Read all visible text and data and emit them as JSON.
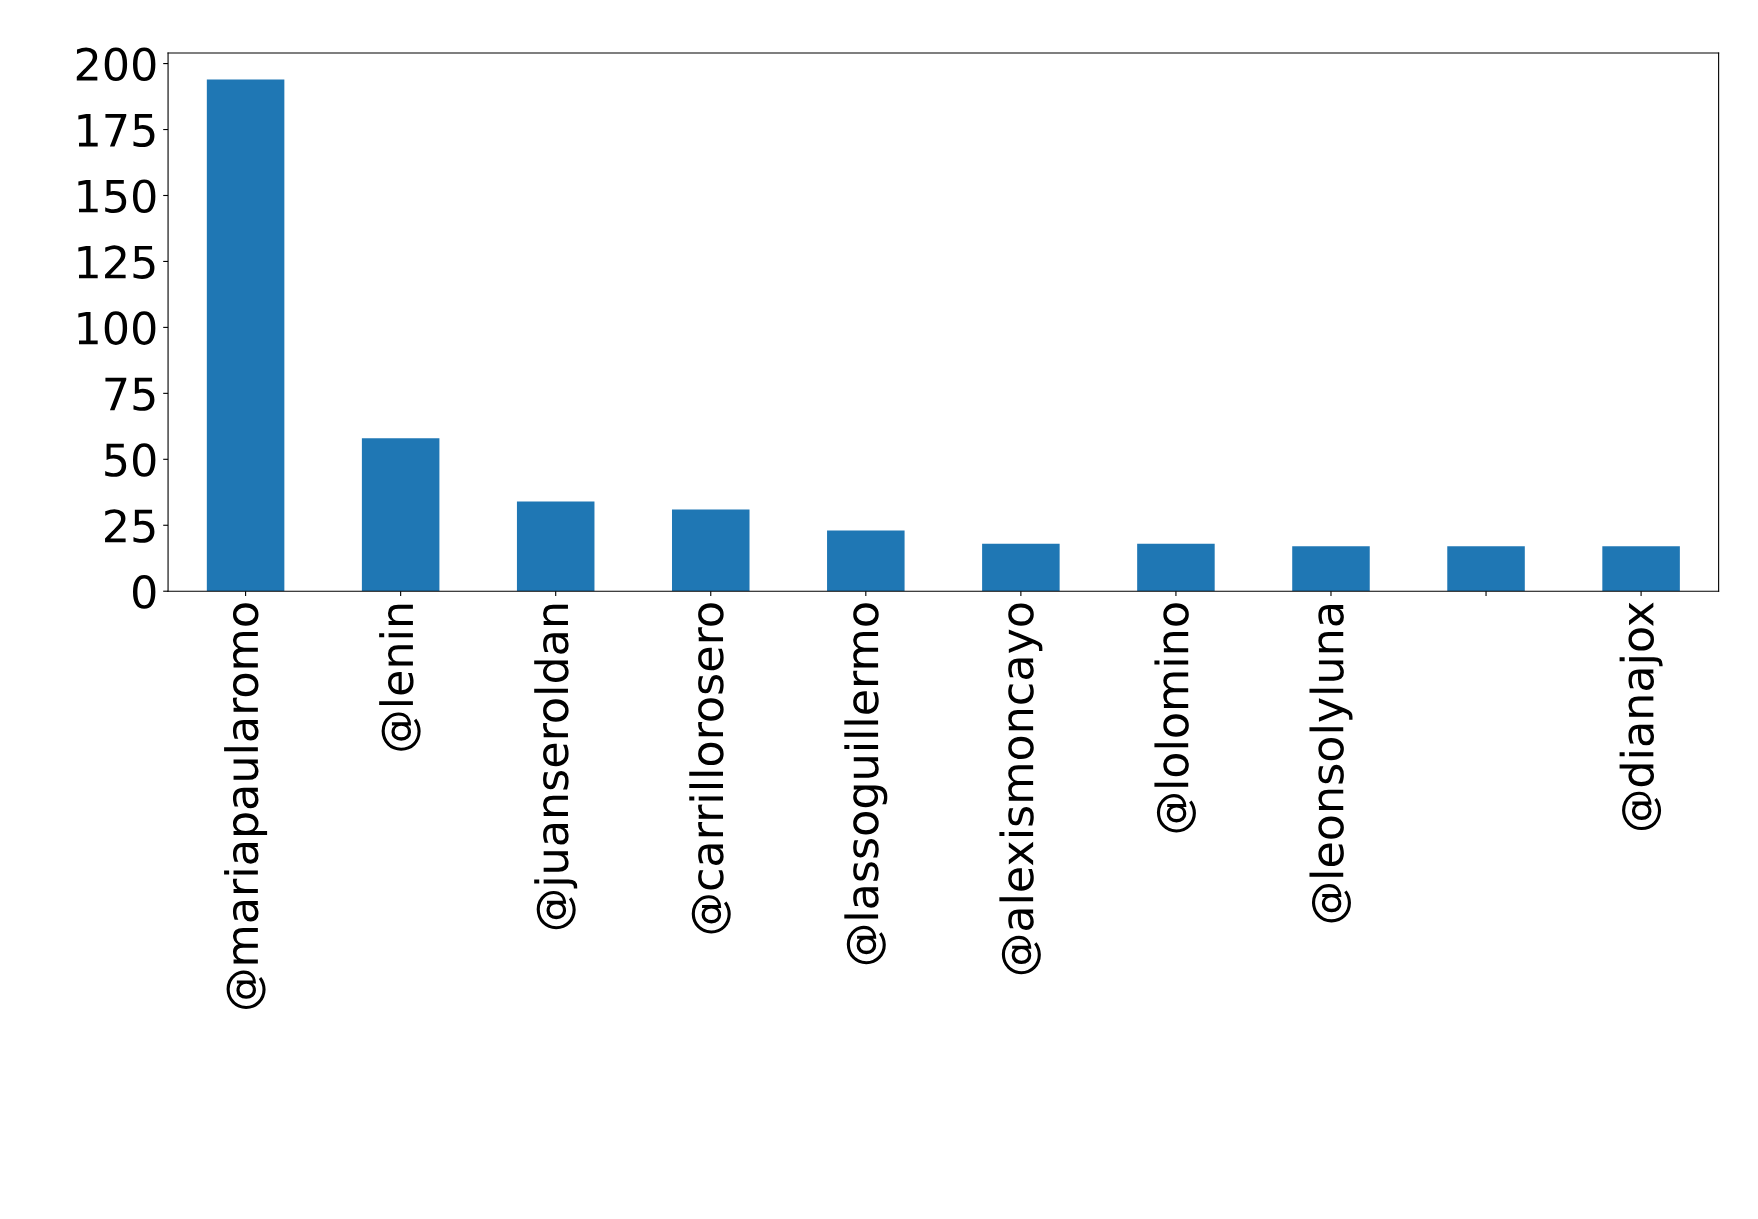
{
  "chart_data": {
    "type": "bar",
    "categories": [
      "@mariapaularomo",
      "@lenin",
      "@juanseroldan",
      "@carrillorosero",
      "@lassoguillermo",
      "@alexismoncayo",
      "@lolomino",
      "@leonsolyluna",
      null,
      "@dianajox"
    ],
    "values": [
      194,
      58,
      34,
      31,
      23,
      18,
      18,
      17,
      17,
      17
    ],
    "color": "#1f77b4",
    "ylim": [
      0,
      204
    ],
    "yticks": [
      0,
      25,
      50,
      75,
      100,
      125,
      150,
      175,
      200
    ],
    "grid": false,
    "legend": false
  }
}
